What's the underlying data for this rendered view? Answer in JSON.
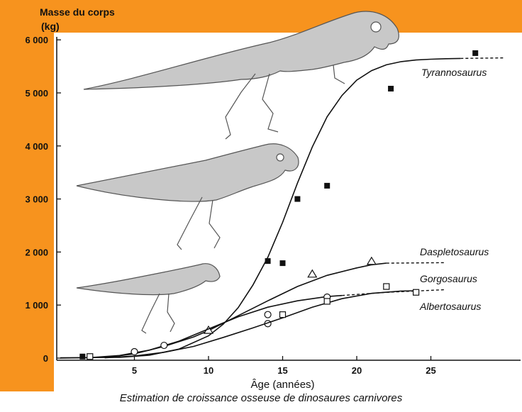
{
  "colors": {
    "background": "#f7931e",
    "plot_area": "#ffffff",
    "ink": "#111111",
    "skeleton_fill": "#bdbdbd"
  },
  "icons": [
    "tyrannosaurus-skeleton-icon",
    "daspletosaurus-skeleton-icon",
    "gorgosaurus-skeleton-icon"
  ],
  "caption": "Estimation de croissance osseuse de dinosaures carnivores",
  "chart_data": {
    "type": "scatter",
    "title": "",
    "ylabel_line1": "Masse du corps",
    "ylabel_line2": "(kg)",
    "xlabel": "Âge (années)",
    "xlim": [
      0,
      30
    ],
    "ylim": [
      0,
      6000
    ],
    "x_ticks": [
      5,
      10,
      15,
      20,
      25
    ],
    "y_ticks": [
      0,
      1000,
      2000,
      3000,
      4000,
      5000,
      6000
    ],
    "y_tick_labels": [
      "0",
      "1 000",
      "2 000",
      "3 000",
      "4 000",
      "5 000",
      "6 000"
    ],
    "grid": false,
    "series": [
      {
        "name": "Tyrannosaurus",
        "marker": "filled-square",
        "points": [
          [
            1.5,
            30
          ],
          [
            14,
            1830
          ],
          [
            15,
            1790
          ],
          [
            16,
            3000
          ],
          [
            18,
            3250
          ],
          [
            22.3,
            5080
          ],
          [
            28,
            5750
          ]
        ],
        "curve": [
          [
            0,
            5
          ],
          [
            4,
            15
          ],
          [
            6,
            55
          ],
          [
            8,
            170
          ],
          [
            10,
            420
          ],
          [
            11,
            640
          ],
          [
            12,
            950
          ],
          [
            13,
            1380
          ],
          [
            14,
            1900
          ],
          [
            15,
            2560
          ],
          [
            16,
            3300
          ],
          [
            17,
            3980
          ],
          [
            18,
            4550
          ],
          [
            19,
            4950
          ],
          [
            20,
            5240
          ],
          [
            21,
            5420
          ],
          [
            22,
            5530
          ],
          [
            23,
            5590
          ],
          [
            24,
            5620
          ],
          [
            25,
            5635
          ],
          [
            26,
            5645
          ],
          [
            27,
            5650
          ]
        ],
        "extension": [
          [
            27,
            5650
          ],
          [
            30,
            5660
          ]
        ]
      },
      {
        "name": "Daspletosaurus",
        "marker": "open-triangle",
        "points": [
          [
            10,
            520
          ],
          [
            17,
            1580
          ],
          [
            21,
            1820
          ]
        ],
        "curve": [
          [
            3,
            10
          ],
          [
            5,
            80
          ],
          [
            7,
            220
          ],
          [
            9,
            400
          ],
          [
            10,
            520
          ],
          [
            12,
            800
          ],
          [
            14,
            1080
          ],
          [
            16,
            1350
          ],
          [
            18,
            1560
          ],
          [
            20,
            1700
          ],
          [
            21,
            1760
          ],
          [
            22,
            1790
          ]
        ],
        "extension": [
          [
            22,
            1790
          ],
          [
            26,
            1800
          ]
        ]
      },
      {
        "name": "Gorgosaurus",
        "marker": "open-circle",
        "points": [
          [
            5,
            120
          ],
          [
            7,
            240
          ],
          [
            14,
            650
          ],
          [
            14,
            820
          ],
          [
            18,
            1150
          ]
        ],
        "curve": [
          [
            0,
            0
          ],
          [
            2,
            10
          ],
          [
            4,
            50
          ],
          [
            6,
            150
          ],
          [
            8,
            320
          ],
          [
            10,
            550
          ],
          [
            12,
            780
          ],
          [
            14,
            960
          ],
          [
            16,
            1080
          ],
          [
            18,
            1160
          ],
          [
            19,
            1180
          ]
        ],
        "extension": [
          [
            19,
            1180
          ],
          [
            22,
            1240
          ],
          [
            26,
            1290
          ]
        ]
      },
      {
        "name": "Albertosaurus",
        "marker": "open-square",
        "points": [
          [
            2,
            30
          ],
          [
            15,
            820
          ],
          [
            18,
            1070
          ],
          [
            22,
            1350
          ],
          [
            24,
            1240
          ]
        ],
        "curve": [
          [
            3,
            5
          ],
          [
            5,
            40
          ],
          [
            7,
            110
          ],
          [
            9,
            220
          ],
          [
            11,
            390
          ],
          [
            13,
            570
          ],
          [
            15,
            760
          ],
          [
            17,
            960
          ],
          [
            19,
            1120
          ],
          [
            21,
            1220
          ],
          [
            23,
            1265
          ],
          [
            24,
            1270
          ]
        ]
      }
    ]
  }
}
